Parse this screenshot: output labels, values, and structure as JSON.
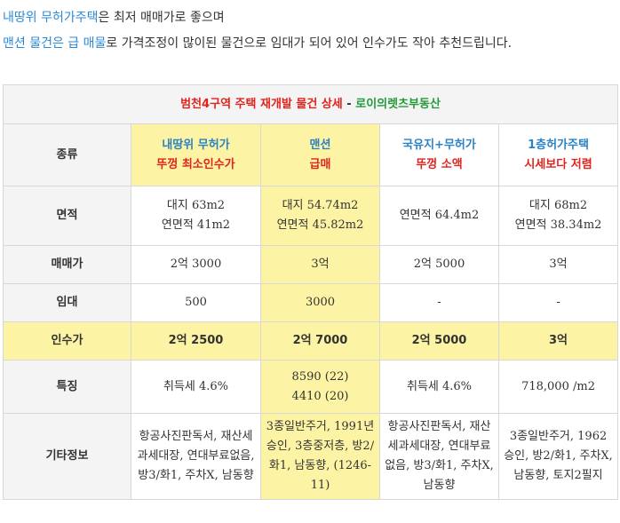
{
  "intro": {
    "line1_highlight": "내땅위 무허가주택",
    "line1_rest": "은 최저 매매가로 좋으며",
    "line2_highlight": "맨션 물건은 급 매물",
    "line2_rest": "로 가격조정이 많이된 물건으로 임대가 되어 있어 인수가도 작아 추천드립니다."
  },
  "table": {
    "title_main": "범천4구역 주택 재개발 물건 상세",
    "title_sep": " - ",
    "title_agency": "로이의렛츠부동산",
    "labels": {
      "type": "종류",
      "area": "면적",
      "sale_price": "매매가",
      "lease": "임대",
      "acquisition": "인수가",
      "features": "특징",
      "other": "기타정보"
    },
    "columns": [
      {
        "type_line1": "내땅위 무허가",
        "type_line2": "뚜껑 최소인수가",
        "area_line1": "대지 63m2",
        "area_line2": "연면적 41m2",
        "sale_price": "2억 3000",
        "lease": "500",
        "acquisition": "2억 2500",
        "feature_line1": "취득세 4.6%",
        "feature_line2": "",
        "other": "항공사진판독서, 재산세과세대장, 연대부료없음, 방3/화1, 주차X, 남동향"
      },
      {
        "type_line1": "맨션",
        "type_line2": "급매",
        "area_line1": "대지 54.74m2",
        "area_line2": "연면적 45.82m2",
        "sale_price": "3억",
        "lease": "3000",
        "acquisition": "2억 7000",
        "feature_line1": "8590 (22)",
        "feature_line2": "4410 (20)",
        "other": "3종일반주거, 1991년 승인, 3층중저층, 방2/화1, 남동향, (1246-11)"
      },
      {
        "type_line1": "국유지+무허가",
        "type_line2": "뚜껑 소액",
        "area_line1": "연면적 64.4m2",
        "area_line2": "",
        "sale_price": "2억 5000",
        "lease": "-",
        "acquisition": "2억 5000",
        "feature_line1": "취득세 4.6%",
        "feature_line2": "",
        "other": "항공사진판독서, 재산세과세대장, 연대부료 없음, 방3/화1, 주차X, 남동향"
      },
      {
        "type_line1": "1층허가주택",
        "type_line2": "시세보다 저렴",
        "area_line1": "대지 68m2",
        "area_line2": "연면적 38.34m2",
        "sale_price": "3억",
        "lease": "-",
        "acquisition": "3억",
        "feature_line1": "718,000 /m2",
        "feature_line2": "",
        "other": "3종일반주거, 1962 승인, 방2/화1, 주차X, 남동향, 토지2필지"
      }
    ]
  },
  "colors": {
    "accent_blue": "#2b82c4",
    "highlight_red": "#e0231c",
    "agency_green": "#249a3a",
    "row_yellow": "#fdf3a5",
    "label_gray": "#f4f4f4"
  }
}
